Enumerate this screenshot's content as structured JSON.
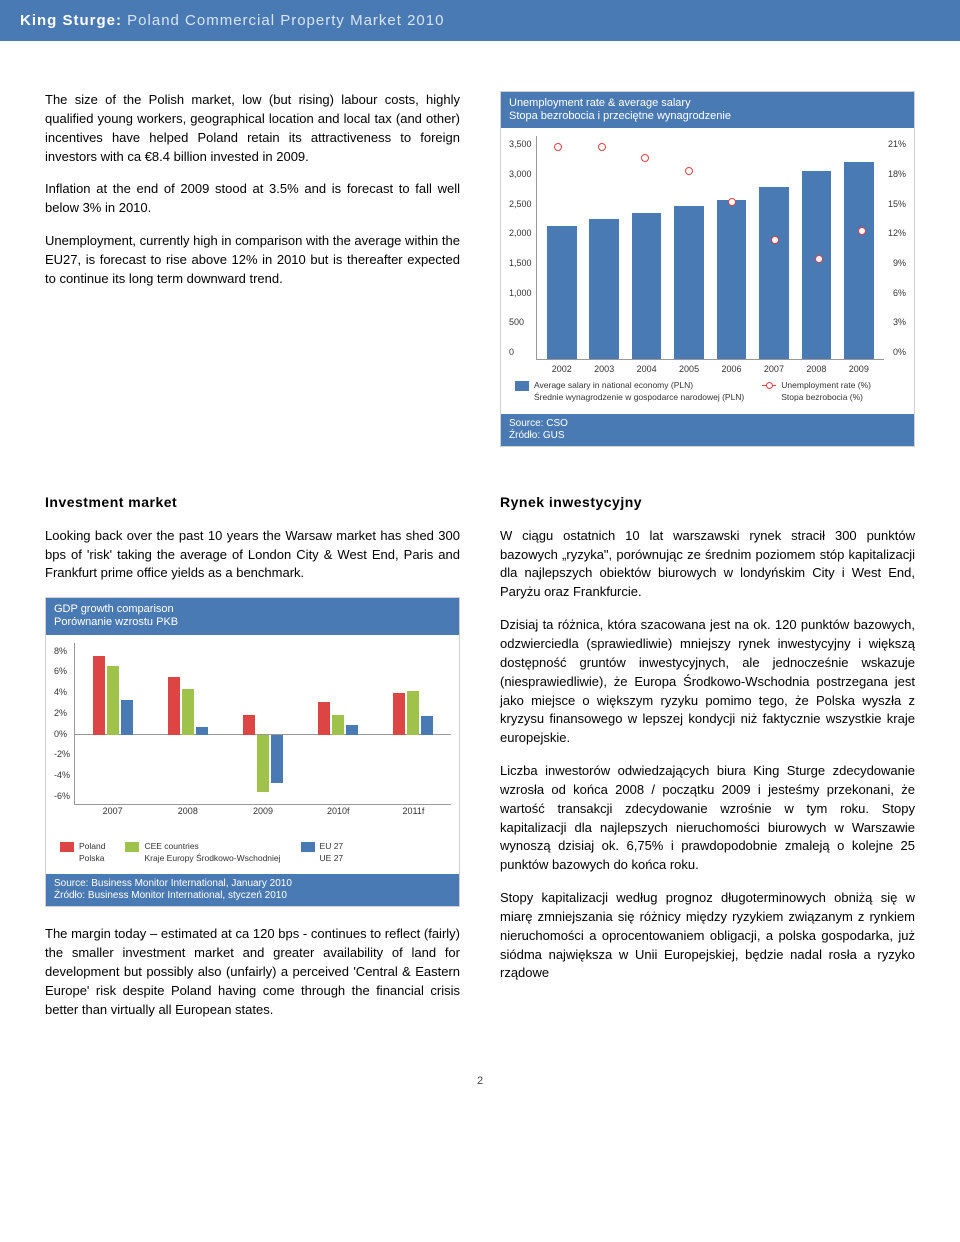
{
  "header": {
    "brand": "King Sturge:",
    "rest": " Poland Commercial Property Market 2010"
  },
  "top_left_paras": [
    "The size of the Polish market, low (but rising) labour costs, highly qualified young workers, geographical location and local tax (and other) incentives have helped Poland retain its attractiveness to foreign investors with ca €8.4 billion invested in 2009.",
    "Inflation at the end of 2009 stood at 3.5% and is forecast to fall well below 3% in 2010.",
    "Unemployment, currently high in comparison with the average within the EU27, is forecast to rise above 12% in 2010 but is thereafter expected to continue its long term downward trend."
  ],
  "unemp_chart": {
    "title_en": "Unemployment rate & average salary",
    "title_pl": "Stopa bezrobocia i przeciętne wynagrodzenie",
    "type": "bar+line dual-axis",
    "years": [
      "2002",
      "2003",
      "2004",
      "2005",
      "2006",
      "2007",
      "2008",
      "2009"
    ],
    "salary_values": [
      2100,
      2200,
      2300,
      2400,
      2500,
      2700,
      2950,
      3100
    ],
    "salary_color": "#4a7ab4",
    "unemp_values_pct": [
      20.0,
      20.0,
      19.0,
      17.7,
      14.8,
      11.2,
      9.5,
      12.1
    ],
    "unemp_color": "#d44",
    "y_left_ticks": [
      "3,500",
      "3,000",
      "2,500",
      "2,000",
      "1,500",
      "1,000",
      "500",
      "0"
    ],
    "y_left_max": 3500,
    "y_right_ticks": [
      "21%",
      "18%",
      "15%",
      "12%",
      "9%",
      "6%",
      "3%",
      "0%"
    ],
    "y_right_max": 21,
    "legend_bar_en": "Average salary in national economy (PLN)",
    "legend_bar_pl": "Średnie wynagrodzenie w gospodarce narodowej (PLN)",
    "legend_line_en": "Unemployment rate (%)",
    "legend_line_pl": "Stopa bezrobocia (%)",
    "source_en": "Source: CSO",
    "source_pl": "Źródło: GUS",
    "bg": "#ffffff"
  },
  "investment": {
    "head_en": "Investment market",
    "head_pl": "Rynek inwestycyjny",
    "en_para1": "Looking back over the past 10 years the Warsaw market has shed 300 bps of 'risk' taking the average of London City & West End, Paris and Frankfurt prime office yields as a benchmark.",
    "en_para2": "The margin today – estimated at ca 120 bps - continues to reflect (fairly) the smaller investment market and greater availability of land for development but possibly also (unfairly) a perceived 'Central & Eastern Europe' risk despite Poland having come through the financial crisis better than virtually all European states.",
    "pl_para1": "W ciągu ostatnich 10 lat warszawski rynek stracił 300 punktów bazowych „ryzyka\", porównując ze średnim poziomem stóp kapitalizacji dla najlepszych obiektów biurowych w londyńskim City i West End, Paryżu oraz Frankfurcie.",
    "pl_para2": "Dzisiaj ta różnica, która szacowana jest na ok. 120 punktów bazowych, odzwierciedla (sprawiedliwie) mniejszy rynek inwestycyjny i większą dostępność gruntów inwestycyjnych, ale jednocześnie wskazuje (niesprawiedliwie), że Europa Środkowo-Wschodnia postrzegana jest jako miejsce o większym ryzyku pomimo tego, że Polska wyszła z kryzysu finansowego w lepszej kondycji niż faktycznie wszystkie kraje europejskie.",
    "pl_para3": "Liczba inwestorów odwiedzających biura King Sturge zdecydowanie wzrosła od końca 2008 / początku 2009 i jesteśmy przekonani, że wartość transakcji zdecydowanie wzrośnie w tym roku. Stopy kapitalizacji dla najlepszych nieruchomości biurowych w Warszawie wynoszą dzisiaj ok. 6,75% i prawdopodobnie zmaleją o kolejne 25 punktów bazowych do końca roku.",
    "pl_para4": "Stopy kapitalizacji według prognoz długoterminowych obniżą się w miarę zmniejszania się różnicy między ryzykiem związanym z rynkiem nieruchomości a oprocentowaniem obligacji, a polska gospodarka, już siódma największa w Unii Europejskiej, będzie nadal rosła a ryzyko rządowe"
  },
  "gdp_chart": {
    "title_en": "GDP growth comparison",
    "title_pl": "Porównanie wzrostu PKB",
    "type": "grouped-bar",
    "years": [
      "2007",
      "2008",
      "2009",
      "2010f",
      "2011f"
    ],
    "y_ticks": [
      "8%",
      "6%",
      "4%",
      "2%",
      "0%",
      "-2%",
      "-4%",
      "-6%"
    ],
    "y_min": -6,
    "y_max": 8,
    "series": [
      {
        "name_en": "Poland",
        "name_pl": "Polska",
        "color": "#d44",
        "values": [
          6.8,
          5.0,
          1.7,
          2.8,
          3.6
        ]
      },
      {
        "name_en": "CEE countries",
        "name_pl": "Kraje Europy Środkowo-Wschodniej",
        "color": "#9fc24a",
        "values": [
          6.0,
          4.0,
          -5.0,
          1.7,
          3.8
        ]
      },
      {
        "name_en": "EU 27",
        "name_pl": "UE 27",
        "color": "#4a7ab4",
        "values": [
          3.0,
          0.7,
          -4.2,
          0.8,
          1.6
        ]
      }
    ],
    "source_en": "Source: Business Monitor International, January 2010",
    "source_pl": "Źródło: Business Monitor International, styczeń 2010"
  },
  "page_number": "2"
}
